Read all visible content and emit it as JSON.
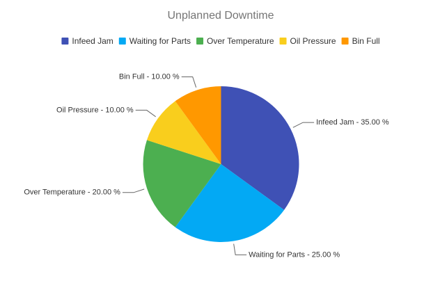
{
  "chart_data": {
    "type": "pie",
    "title": "Unplanned Downtime",
    "legend_position": "top",
    "label_format": "{name} - {value} %",
    "slices": [
      {
        "name": "Infeed Jam",
        "value": 35.0,
        "label": "35.00",
        "color": "#3F51B5"
      },
      {
        "name": "Waiting for Parts",
        "value": 25.0,
        "label": "25.00",
        "color": "#03A9F4"
      },
      {
        "name": "Over Temperature",
        "value": 20.0,
        "label": "20.00",
        "color": "#4CAF50"
      },
      {
        "name": "Oil Pressure",
        "value": 10.0,
        "label": "10.00",
        "color": "#F9CE1D"
      },
      {
        "name": "Bin Full",
        "value": 10.0,
        "label": "10.00",
        "color": "#FF9800"
      }
    ]
  }
}
